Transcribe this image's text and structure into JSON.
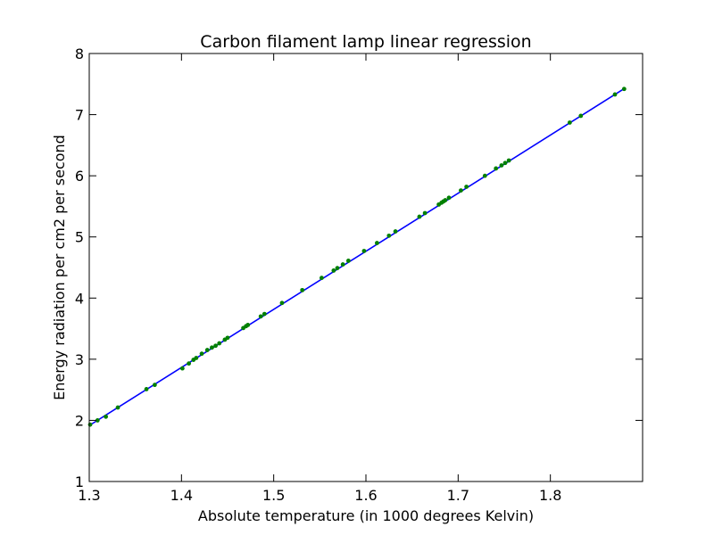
{
  "chart_data": {
    "type": "scatter",
    "title": "Carbon filament lamp linear regression",
    "xlabel": "Absolute temperature (in 1000 degrees Kelvin)",
    "ylabel": "Energy radiation per cm2 per second",
    "xlim": [
      1.3,
      1.9
    ],
    "ylim": [
      1,
      8
    ],
    "xticks": [
      1.3,
      1.4,
      1.5,
      1.6,
      1.7,
      1.8
    ],
    "yticks": [
      1,
      2,
      3,
      4,
      5,
      6,
      7,
      8
    ],
    "grid": false,
    "series": [
      {
        "kind": "points",
        "color": "#008000",
        "x": [
          1.301,
          1.309,
          1.318,
          1.331,
          1.362,
          1.371,
          1.401,
          1.408,
          1.413,
          1.416,
          1.422,
          1.428,
          1.433,
          1.437,
          1.441,
          1.447,
          1.45,
          1.467,
          1.47,
          1.472,
          1.486,
          1.49,
          1.509,
          1.531,
          1.552,
          1.565,
          1.569,
          1.575,
          1.581,
          1.598,
          1.612,
          1.625,
          1.632,
          1.658,
          1.664,
          1.679,
          1.682,
          1.684,
          1.686,
          1.69,
          1.703,
          1.709,
          1.729,
          1.741,
          1.747,
          1.751,
          1.755,
          1.821,
          1.833,
          1.87,
          1.88
        ],
        "y": [
          1.93,
          2.0,
          2.06,
          2.21,
          2.51,
          2.58,
          2.85,
          2.93,
          2.99,
          3.02,
          3.09,
          3.15,
          3.19,
          3.22,
          3.26,
          3.32,
          3.35,
          3.51,
          3.54,
          3.56,
          3.7,
          3.74,
          3.92,
          4.13,
          4.33,
          4.45,
          4.49,
          4.55,
          4.61,
          4.77,
          4.9,
          5.02,
          5.09,
          5.33,
          5.39,
          5.53,
          5.56,
          5.58,
          5.6,
          5.64,
          5.76,
          5.82,
          6.0,
          6.12,
          6.17,
          6.21,
          6.25,
          6.87,
          6.98,
          7.33,
          7.42
        ]
      },
      {
        "kind": "fit-line",
        "color": "#0000ff",
        "x": [
          1.3,
          1.88
        ],
        "y": [
          1.915,
          7.425
        ]
      }
    ]
  }
}
